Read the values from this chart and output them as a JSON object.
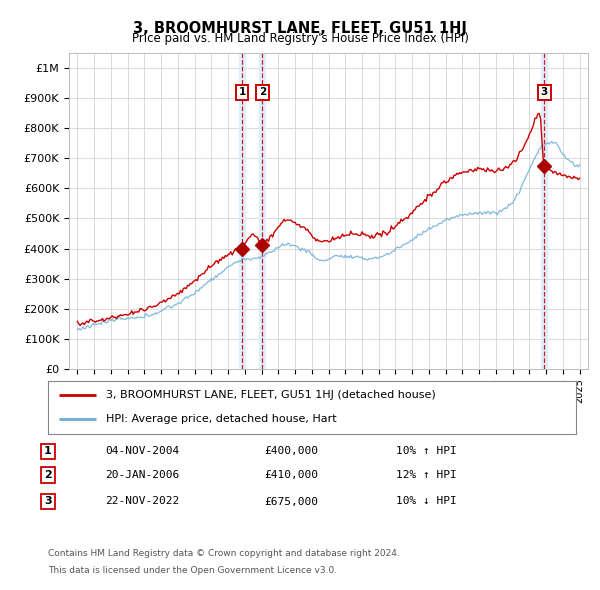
{
  "title": "3, BROOMHURST LANE, FLEET, GU51 1HJ",
  "subtitle": "Price paid vs. HM Land Registry's House Price Index (HPI)",
  "legend_line1": "3, BROOMHURST LANE, FLEET, GU51 1HJ (detached house)",
  "legend_line2": "HPI: Average price, detached house, Hart",
  "footer1": "Contains HM Land Registry data © Crown copyright and database right 2024.",
  "footer2": "This data is licensed under the Open Government Licence v3.0.",
  "transactions": [
    {
      "num": 1,
      "date": "04-NOV-2004",
      "price": 400000,
      "pct": "10%",
      "dir": "↑",
      "x_year": 2004.84
    },
    {
      "num": 2,
      "date": "20-JAN-2006",
      "price": 410000,
      "pct": "12%",
      "dir": "↑",
      "x_year": 2006.05
    },
    {
      "num": 3,
      "date": "22-NOV-2022",
      "price": 675000,
      "pct": "10%",
      "dir": "↓",
      "x_year": 2022.89
    }
  ],
  "sale_marker_prices": [
    400000,
    410000,
    675000
  ],
  "sale_marker_years": [
    2004.84,
    2006.05,
    2022.89
  ],
  "hpi_color": "#6baed6",
  "price_color": "#cc0000",
  "marker_color": "#aa0000",
  "vline_color": "#cc0000",
  "shade_color": "#ddeeff",
  "ylim": [
    0,
    1050000
  ],
  "yticks": [
    0,
    100000,
    200000,
    300000,
    400000,
    500000,
    600000,
    700000,
    800000,
    900000,
    1000000
  ],
  "ytick_labels": [
    "£0",
    "£100K",
    "£200K",
    "£300K",
    "£400K",
    "£500K",
    "£600K",
    "£700K",
    "£800K",
    "£900K",
    "£1M"
  ],
  "xmin": 1994.5,
  "xmax": 2025.5,
  "grid_color": "#cccccc"
}
